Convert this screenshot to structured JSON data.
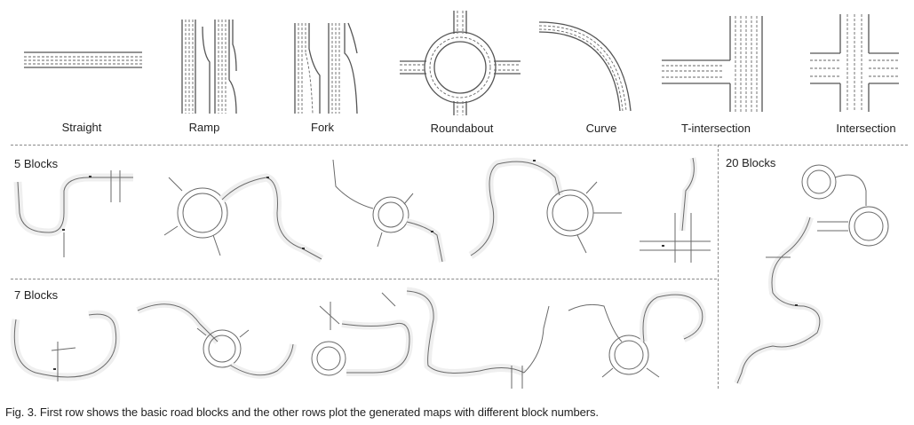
{
  "blocks": [
    {
      "label": "Straight"
    },
    {
      "label": "Ramp"
    },
    {
      "label": "Fork"
    },
    {
      "label": "Roundabout"
    },
    {
      "label": "Curve"
    },
    {
      "label": "T-intersection"
    },
    {
      "label": "Intersection"
    }
  ],
  "rows": {
    "row5": "5 Blocks",
    "row7": "7 Blocks",
    "row20": "20 Blocks"
  },
  "caption": "Fig. 3. First row shows the basic road blocks and the other rows plot the generated maps with different block numbers."
}
